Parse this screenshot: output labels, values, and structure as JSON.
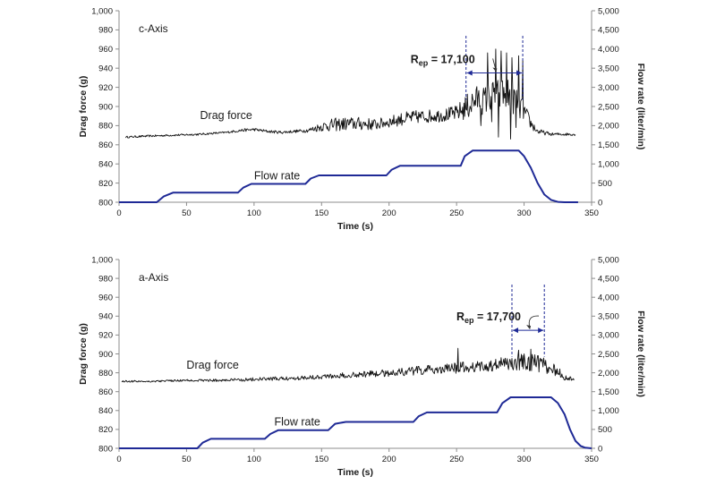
{
  "colors": {
    "drag": "#111111",
    "flow": "#1f2a96",
    "annotation": "#1f2a96",
    "axis": "#8c8c8c"
  },
  "chart_data": [
    {
      "type": "line",
      "panel_label": "c-Axis",
      "xlabel": "Time (s)",
      "ylabel": "Drag force (g)",
      "y2label": "Flow rate (liter/min)",
      "xlim": [
        0,
        350
      ],
      "ylim": [
        800,
        1000
      ],
      "y2lim": [
        0,
        5000
      ],
      "xticks": [
        0,
        50,
        100,
        150,
        200,
        250,
        300,
        350
      ],
      "yticks": [
        800,
        820,
        840,
        860,
        880,
        900,
        920,
        940,
        960,
        980,
        1000
      ],
      "yticklabels": [
        "800",
        "820",
        "840",
        "860",
        "880",
        "900",
        "920",
        "940",
        "960",
        "980",
        "1,000"
      ],
      "y2ticks": [
        0,
        500,
        1000,
        1500,
        2000,
        2500,
        3000,
        3500,
        4000,
        4500,
        5000
      ],
      "y2ticklabels": [
        "0",
        "500",
        "1,000",
        "1,500",
        "2,000",
        "2,500",
        "3,000",
        "3,500",
        "4,000",
        "4,500",
        "5,000"
      ],
      "grid": "horizontal",
      "series": [
        {
          "name": "Drag force",
          "axis": "left",
          "x": [
            5,
            20,
            40,
            60,
            80,
            90,
            100,
            110,
            120,
            130,
            140,
            150,
            160,
            170,
            180,
            190,
            200,
            210,
            220,
            230,
            240,
            250,
            255,
            260,
            265,
            270,
            275,
            280,
            285,
            290,
            295,
            300,
            305,
            310,
            320,
            330,
            338
          ],
          "y": [
            868,
            869,
            870,
            871,
            873,
            875,
            876,
            874,
            873,
            874,
            875,
            879,
            881,
            882,
            882,
            881,
            884,
            887,
            889,
            890,
            891,
            893,
            897,
            902,
            908,
            906,
            910,
            912,
            913,
            911,
            906,
            895,
            882,
            874,
            871,
            871,
            871
          ],
          "noise": [
            1,
            1,
            1,
            1,
            1,
            1.5,
            1.5,
            1.5,
            1.5,
            1.5,
            2,
            5,
            7,
            7,
            7,
            6,
            6,
            7,
            7,
            7,
            7,
            8,
            12,
            15,
            14,
            15,
            16,
            18,
            18,
            19,
            14,
            10,
            6,
            3,
            1.5,
            1.5,
            1.5
          ],
          "spikes": [
            [
              273,
              956
            ],
            [
              279,
              960
            ],
            [
              283,
              958
            ],
            [
              287,
              956
            ],
            [
              291,
              951
            ],
            [
              296,
              953
            ],
            [
              299,
              948
            ],
            [
              281,
              868
            ],
            [
              290,
              866
            ],
            [
              294,
              878
            ],
            [
              297,
              888
            ],
            [
              268,
              880
            ],
            [
              276,
              884
            ]
          ]
        },
        {
          "name": "Flow rate",
          "axis": "right",
          "x": [
            0,
            28,
            33,
            40,
            88,
            92,
            98,
            138,
            142,
            148,
            198,
            202,
            208,
            253,
            256,
            262,
            293,
            296,
            300,
            305,
            310,
            315,
            320,
            325,
            330,
            340
          ],
          "y": [
            0,
            0,
            150,
            250,
            250,
            380,
            480,
            480,
            620,
            700,
            700,
            850,
            950,
            950,
            1200,
            1350,
            1350,
            1350,
            1200,
            900,
            500,
            200,
            60,
            10,
            0,
            0
          ]
        }
      ],
      "annotation": {
        "label_main": "R",
        "label_sub": "ep",
        "label_value": " = 17,100",
        "x_start": 257,
        "x_end": 299,
        "y": 935
      }
    },
    {
      "type": "line",
      "panel_label": "a-Axis",
      "xlabel": "Time (s)",
      "ylabel": "Drag force (g)",
      "y2label": "Flow rate (liter/min)",
      "xlim": [
        0,
        350
      ],
      "ylim": [
        800,
        1000
      ],
      "y2lim": [
        0,
        5000
      ],
      "xticks": [
        0,
        50,
        100,
        150,
        200,
        250,
        300,
        350
      ],
      "yticks": [
        800,
        820,
        840,
        860,
        880,
        900,
        920,
        940,
        960,
        980,
        1000
      ],
      "yticklabels": [
        "800",
        "820",
        "840",
        "860",
        "880",
        "900",
        "920",
        "940",
        "960",
        "980",
        "1,000"
      ],
      "y2ticks": [
        0,
        500,
        1000,
        1500,
        2000,
        2500,
        3000,
        3500,
        4000,
        4500,
        5000
      ],
      "y2ticklabels": [
        "0",
        "500",
        "1,000",
        "1,500",
        "2,000",
        "2,500",
        "3,000",
        "3,500",
        "4,000",
        "4,500",
        "5,000"
      ],
      "grid": "horizontal",
      "series": [
        {
          "name": "Drag force",
          "axis": "left",
          "x": [
            2,
            25,
            50,
            75,
            100,
            125,
            150,
            175,
            200,
            220,
            240,
            250,
            260,
            270,
            280,
            290,
            300,
            310,
            320,
            330,
            337
          ],
          "y": [
            871,
            871,
            872,
            872,
            873,
            874,
            876,
            878,
            880,
            882,
            884,
            885,
            886,
            887,
            888,
            890,
            892,
            890,
            885,
            876,
            872
          ],
          "noise": [
            1,
            1,
            1,
            1.5,
            2,
            2,
            2.5,
            3,
            4,
            5,
            5,
            6,
            6,
            6,
            7,
            9,
            9,
            9,
            7,
            4,
            1.5
          ],
          "spikes": [
            [
              251,
              906
            ],
            [
              296,
              904
            ],
            [
              305,
              905
            ],
            [
              283,
              896
            ]
          ]
        },
        {
          "name": "Flow rate",
          "axis": "right",
          "x": [
            0,
            58,
            62,
            68,
            108,
            112,
            118,
            155,
            160,
            168,
            218,
            222,
            228,
            280,
            284,
            290,
            318,
            320,
            325,
            330,
            334,
            338,
            342,
            345,
            350
          ],
          "y": [
            0,
            0,
            150,
            250,
            250,
            380,
            480,
            480,
            650,
            700,
            700,
            850,
            950,
            950,
            1200,
            1350,
            1350,
            1350,
            1200,
            900,
            500,
            200,
            60,
            20,
            0
          ]
        }
      ],
      "annotation": {
        "label_main": "R",
        "label_sub": "ep",
        "label_value": " = 17,700",
        "x_start": 291,
        "x_end": 315,
        "y": 925
      }
    }
  ]
}
